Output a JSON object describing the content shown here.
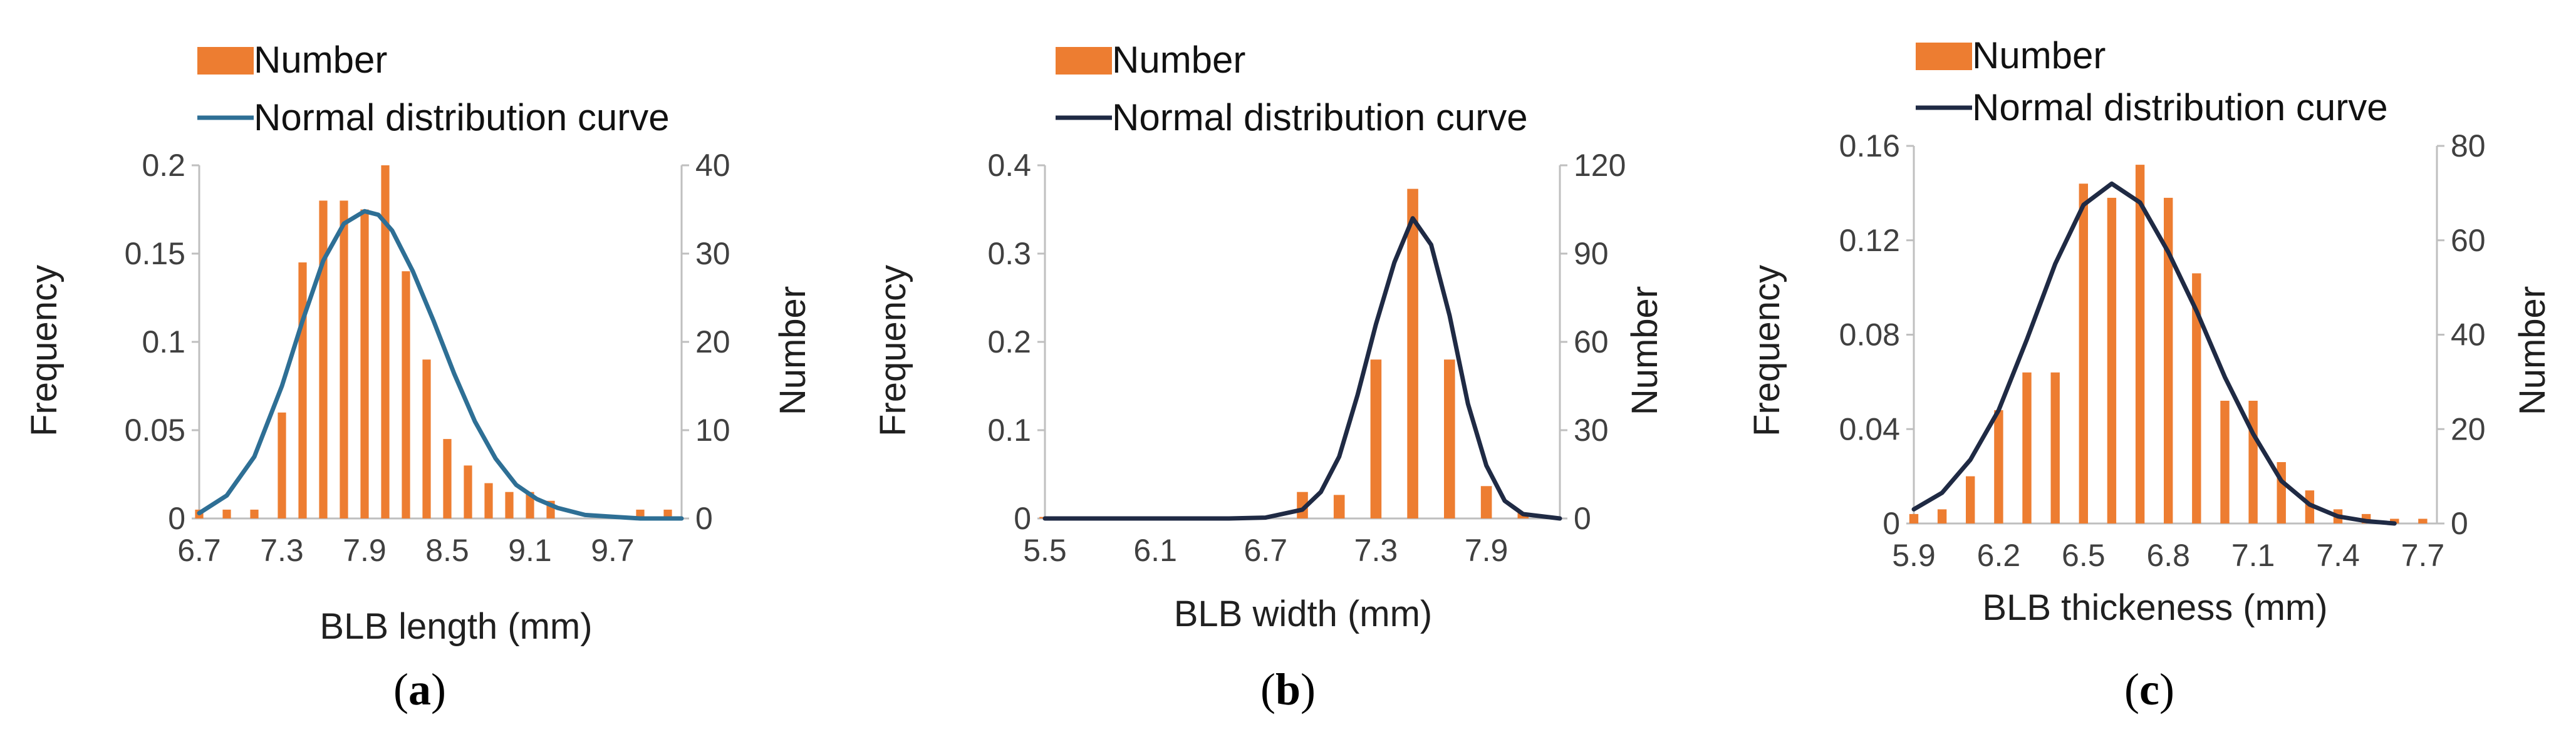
{
  "colors": {
    "bar": "#ED7D31",
    "curve_a": "#2E6F95",
    "curve_bc": "#1F2A44",
    "axis": "#BFBFBF"
  },
  "chart_data": [
    {
      "type": "bar",
      "panel_label": "a",
      "legend": {
        "bar_label": "Number",
        "line_label": "Normal distribution curve",
        "placement": "top"
      },
      "xlabel": "BLB length (mm)",
      "ylabel_left": "Frequency",
      "ylabel_right": "Number",
      "x_range": [
        6.7,
        10.2
      ],
      "x_ticks": [
        6.7,
        7.3,
        7.9,
        8.5,
        9.1,
        9.7
      ],
      "x_tick_labels": [
        "6.7",
        "7.3",
        "7.9",
        "8.5",
        "9.1",
        "9.7"
      ],
      "ylim_left": [
        0,
        0.2
      ],
      "y_left_ticks": [
        0,
        0.05,
        0.1,
        0.15,
        0.2
      ],
      "y_left_tick_labels": [
        "0",
        "0.05",
        "0.1",
        "0.15",
        "0.2"
      ],
      "ylim_right": [
        0,
        40
      ],
      "y_right_ticks": [
        0,
        10,
        20,
        30,
        40
      ],
      "y_right_tick_labels": [
        "0",
        "10",
        "20",
        "30",
        "40"
      ],
      "bar_width": 0.06,
      "bars": {
        "x": [
          6.7,
          6.9,
          7.1,
          7.3,
          7.45,
          7.6,
          7.75,
          7.9,
          8.05,
          8.2,
          8.35,
          8.5,
          8.65,
          8.8,
          8.95,
          9.1,
          9.25,
          9.9,
          10.1
        ],
        "number": [
          1,
          1,
          1,
          12,
          29,
          36,
          36,
          35,
          40,
          28,
          18,
          9,
          6,
          4,
          3,
          3,
          2,
          1,
          1
        ]
      },
      "curve": {
        "x": [
          6.7,
          6.9,
          7.1,
          7.3,
          7.45,
          7.6,
          7.75,
          7.9,
          8.0,
          8.1,
          8.25,
          8.4,
          8.55,
          8.7,
          8.85,
          9.0,
          9.15,
          9.3,
          9.5,
          9.7,
          9.9,
          10.2
        ],
        "frequency": [
          0.003,
          0.013,
          0.035,
          0.075,
          0.112,
          0.146,
          0.167,
          0.174,
          0.172,
          0.163,
          0.14,
          0.112,
          0.082,
          0.055,
          0.034,
          0.019,
          0.011,
          0.006,
          0.002,
          0.001,
          0.0,
          0.0
        ]
      }
    },
    {
      "type": "bar",
      "panel_label": "b",
      "legend": {
        "bar_label": "Number",
        "line_label": "Normal distribution curve",
        "placement": "top"
      },
      "xlabel": "BLB width (mm)",
      "ylabel_left": "Frequency",
      "ylabel_right": "Number",
      "x_range": [
        5.5,
        8.3
      ],
      "x_ticks": [
        5.5,
        6.1,
        6.7,
        7.3,
        7.9
      ],
      "x_tick_labels": [
        "5.5",
        "6.1",
        "6.7",
        "7.3",
        "7.9"
      ],
      "ylim_left": [
        0,
        0.4
      ],
      "y_left_ticks": [
        0,
        0.1,
        0.2,
        0.3,
        0.4
      ],
      "y_left_tick_labels": [
        "0",
        "0.1",
        "0.2",
        "0.3",
        "0.4"
      ],
      "ylim_right": [
        0,
        120
      ],
      "y_right_ticks": [
        0,
        30,
        60,
        90,
        120
      ],
      "y_right_tick_labels": [
        "0",
        "30",
        "60",
        "90",
        "120"
      ],
      "bar_width": 0.06,
      "bars": {
        "x": [
          5.5,
          6.9,
          7.1,
          7.3,
          7.5,
          7.7,
          7.9,
          8.1
        ],
        "number": [
          0.5,
          9,
          8,
          54,
          112,
          54,
          11,
          2
        ]
      },
      "curve": {
        "x": [
          5.5,
          6.0,
          6.5,
          6.7,
          6.9,
          7.0,
          7.1,
          7.2,
          7.3,
          7.4,
          7.5,
          7.6,
          7.7,
          7.8,
          7.9,
          8.0,
          8.1,
          8.3
        ],
        "frequency": [
          0.0,
          0.0,
          0.0,
          0.001,
          0.01,
          0.03,
          0.07,
          0.14,
          0.22,
          0.29,
          0.34,
          0.31,
          0.23,
          0.13,
          0.06,
          0.02,
          0.005,
          0.0
        ]
      }
    },
    {
      "type": "bar",
      "panel_label": "c",
      "legend": {
        "bar_label": "Number",
        "line_label": "Normal distribution curve",
        "placement": "top"
      },
      "xlabel": "BLB thickeness (mm)",
      "ylabel_left": "Frequency",
      "ylabel_right": "Number",
      "x_range": [
        5.9,
        7.75
      ],
      "x_ticks": [
        5.9,
        6.2,
        6.5,
        6.8,
        7.1,
        7.4,
        7.7
      ],
      "x_tick_labels": [
        "5.9",
        "6.2",
        "6.5",
        "6.8",
        "7.1",
        "7.4",
        "7.7"
      ],
      "ylim_left": [
        0,
        0.16
      ],
      "y_left_ticks": [
        0,
        0.04,
        0.08,
        0.12,
        0.16
      ],
      "y_left_tick_labels": [
        "0",
        "0.04",
        "0.08",
        "0.12",
        "0.16"
      ],
      "ylim_right": [
        0,
        80
      ],
      "y_right_ticks": [
        0,
        20,
        40,
        60,
        80
      ],
      "y_right_tick_labels": [
        "0",
        "20",
        "40",
        "60",
        "80"
      ],
      "bar_width": 0.032,
      "bars": {
        "x": [
          5.9,
          6.0,
          6.1,
          6.2,
          6.3,
          6.4,
          6.5,
          6.6,
          6.7,
          6.8,
          6.9,
          7.0,
          7.1,
          7.2,
          7.3,
          7.4,
          7.5,
          7.6,
          7.7
        ],
        "number": [
          2,
          3,
          10,
          24,
          32,
          32,
          72,
          69,
          76,
          69,
          53,
          26,
          26,
          13,
          7,
          3,
          2,
          1,
          1
        ]
      },
      "curve": {
        "x": [
          5.9,
          6.0,
          6.1,
          6.2,
          6.3,
          6.4,
          6.5,
          6.6,
          6.7,
          6.8,
          6.9,
          7.0,
          7.1,
          7.2,
          7.3,
          7.4,
          7.5,
          7.6
        ],
        "frequency": [
          0.006,
          0.013,
          0.027,
          0.048,
          0.078,
          0.11,
          0.135,
          0.144,
          0.136,
          0.115,
          0.09,
          0.062,
          0.038,
          0.018,
          0.008,
          0.003,
          0.001,
          0.0
        ]
      }
    }
  ]
}
